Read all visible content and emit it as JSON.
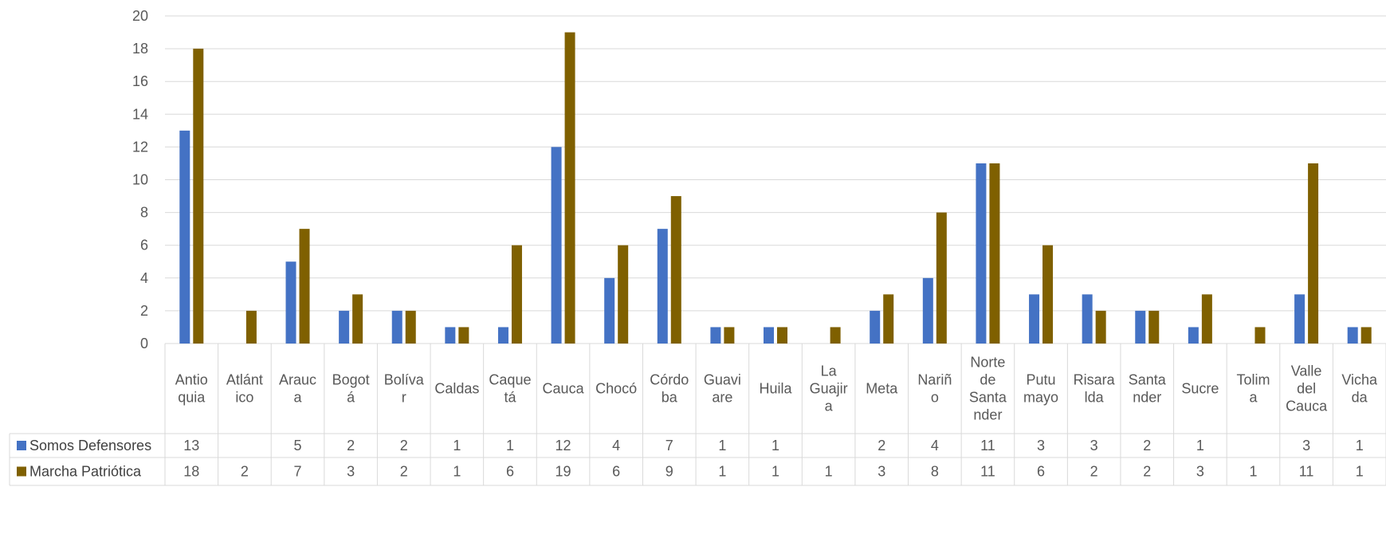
{
  "chart_data": {
    "type": "bar",
    "title": "",
    "xlabel": "",
    "ylabel": "",
    "ylim": [
      0,
      20
    ],
    "yticks": [
      0,
      2,
      4,
      6,
      8,
      10,
      12,
      14,
      16,
      18,
      20
    ],
    "grid": true,
    "legend": "data-table-left",
    "categories": [
      [
        "Antio",
        "quia"
      ],
      [
        "Atlánt",
        "ico"
      ],
      [
        "Arauc",
        "a"
      ],
      [
        "Bogot",
        "á"
      ],
      [
        "Bolíva",
        "r"
      ],
      [
        "Caldas"
      ],
      [
        "Caque",
        "tá"
      ],
      [
        "Cauca"
      ],
      [
        "Chocó"
      ],
      [
        "Córdo",
        "ba"
      ],
      [
        "Guavi",
        "are"
      ],
      [
        "Huila"
      ],
      [
        "La",
        "Guajir",
        "a"
      ],
      [
        "Meta"
      ],
      [
        "Nariñ",
        "o"
      ],
      [
        "Norte",
        "de",
        "Santa",
        "nder"
      ],
      [
        "Putu",
        "mayo"
      ],
      [
        "Risara",
        "lda"
      ],
      [
        "Santa",
        "nder"
      ],
      [
        "Sucre"
      ],
      [
        "Tolim",
        "a"
      ],
      [
        "Valle",
        "del",
        "Cauca"
      ],
      [
        "Vicha",
        "da"
      ]
    ],
    "series": [
      {
        "name": "Somos Defensores",
        "color": "#4472c4",
        "values": [
          13,
          null,
          5,
          2,
          2,
          1,
          1,
          12,
          4,
          7,
          1,
          1,
          null,
          2,
          4,
          11,
          3,
          3,
          2,
          1,
          null,
          3,
          1
        ]
      },
      {
        "name": "Marcha Patriótica",
        "color": "#7f6000",
        "values": [
          18,
          2,
          7,
          3,
          2,
          1,
          6,
          19,
          6,
          9,
          1,
          1,
          1,
          3,
          8,
          11,
          6,
          2,
          2,
          3,
          1,
          11,
          1
        ]
      }
    ]
  }
}
